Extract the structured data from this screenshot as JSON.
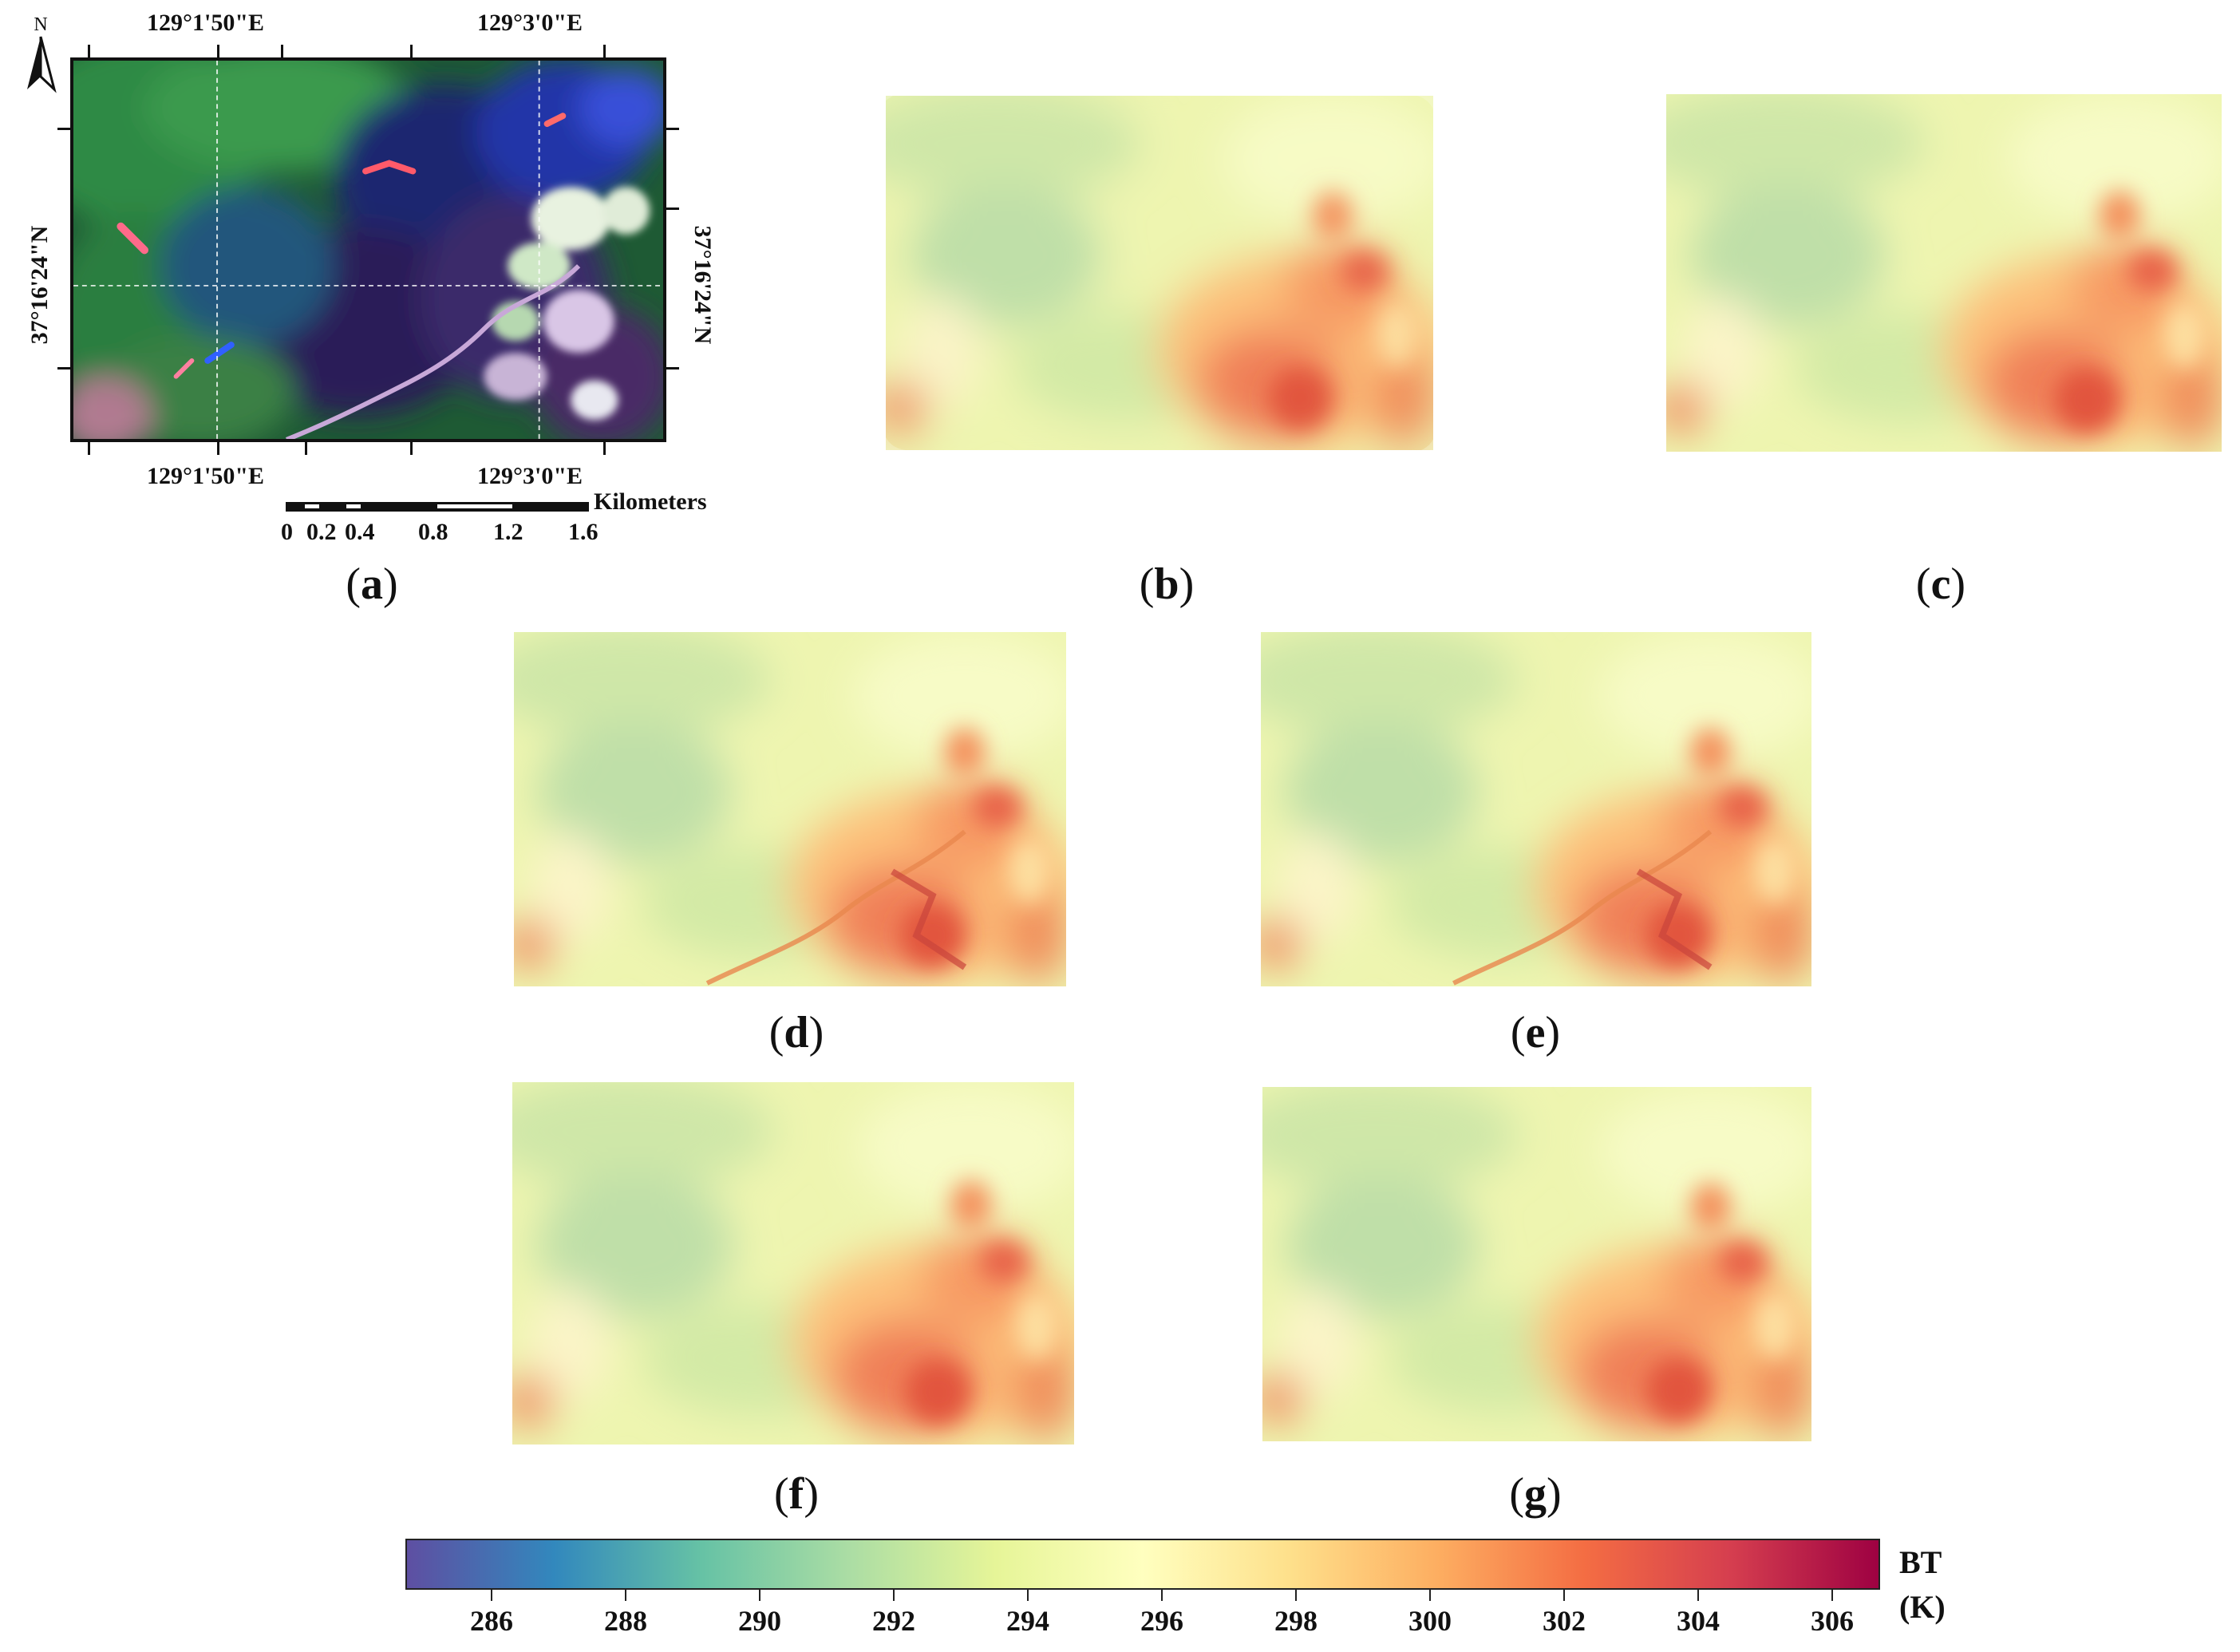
{
  "panel_a": {
    "lon_label_1": "129°1'50\"E",
    "lon_label_2": "129°3'0\"E",
    "lat_label": "37°16'24\"N",
    "north_label": "N",
    "scale_unit": "Kilometers",
    "scale_values": [
      "0",
      "0.2",
      "0.4",
      "0.8",
      "1.2",
      "1.6"
    ]
  },
  "panel_labels": {
    "a": "a",
    "b": "b",
    "c": "c",
    "d": "d",
    "e": "e",
    "f": "f",
    "g": "g"
  },
  "colorbar": {
    "title_line1": "BT",
    "title_line2": "(K)",
    "ticks": [
      "286",
      "288",
      "290",
      "292",
      "294",
      "296",
      "298",
      "300",
      "302",
      "304",
      "306"
    ],
    "colors": [
      "#5e4fa2",
      "#3288bd",
      "#66c2a5",
      "#abdda4",
      "#e6f598",
      "#ffffbf",
      "#fee08b",
      "#fdae61",
      "#f46d43",
      "#d53e4f",
      "#9e0142"
    ]
  }
}
